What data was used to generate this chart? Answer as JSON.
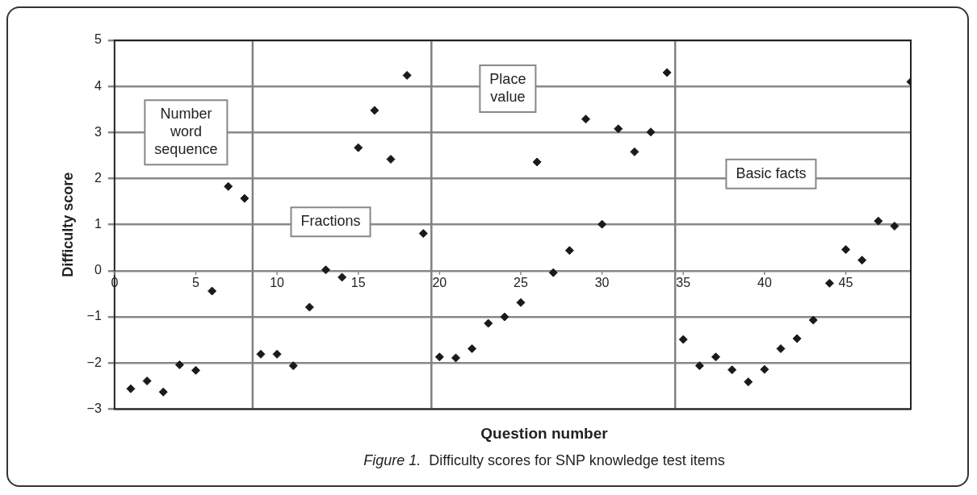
{
  "chart_data": {
    "type": "scatter",
    "xlabel": "Question number",
    "ylabel": "Difficulty score",
    "x": [
      1,
      2,
      3,
      4,
      5,
      6,
      7,
      8,
      9,
      10,
      11,
      12,
      13,
      14,
      15,
      16,
      17,
      18,
      19,
      20,
      21,
      22,
      23,
      24,
      25,
      26,
      27,
      28,
      29,
      30,
      31,
      32,
      33,
      34,
      35,
      36,
      37,
      38,
      39,
      40,
      41,
      42,
      43,
      44,
      45,
      46,
      47,
      48,
      49
    ],
    "series": [
      {
        "color": "#1a1a1a",
        "values": [
          -2.56,
          -2.39,
          -2.63,
          -2.04,
          -2.16,
          -0.44,
          1.83,
          1.57,
          -1.81,
          -1.81,
          -2.06,
          -0.79,
          0.02,
          -0.14,
          2.67,
          3.48,
          2.42,
          4.24,
          0.81,
          -1.87,
          -1.89,
          -1.69,
          -1.14,
          -1.0,
          -0.69,
          2.36,
          -0.04,
          0.44,
          3.29,
          1.01,
          3.08,
          2.58,
          3.01,
          4.3,
          -1.49,
          -2.06,
          -1.87,
          -2.15,
          -2.41,
          -2.14,
          -1.69,
          -1.47,
          -1.07,
          -0.27,
          0.46,
          0.23,
          1.08,
          0.97,
          4.1
        ]
      }
    ],
    "xlim": [
      0,
      49
    ],
    "xticks": [
      0,
      5,
      10,
      15,
      20,
      25,
      30,
      35,
      40,
      45
    ],
    "ylim": [
      -3,
      5
    ],
    "yticks": [
      -3,
      -2,
      -1,
      0,
      1,
      2,
      3,
      4,
      5
    ],
    "grid": "y",
    "marker": "diamond",
    "legend": false,
    "ref_lines": [
      {
        "axis": "x",
        "value": 8.5,
        "color": "#808080"
      },
      {
        "axis": "x",
        "value": 19.5,
        "color": "#808080"
      },
      {
        "axis": "x",
        "value": 34.5,
        "color": "#808080"
      }
    ],
    "annotations": [
      "Number word sequence",
      "Fractions",
      "Place value",
      "Basic facts",
      "Figure 1.  Difficulty scores for SNP knowledge test items"
    ]
  }
}
